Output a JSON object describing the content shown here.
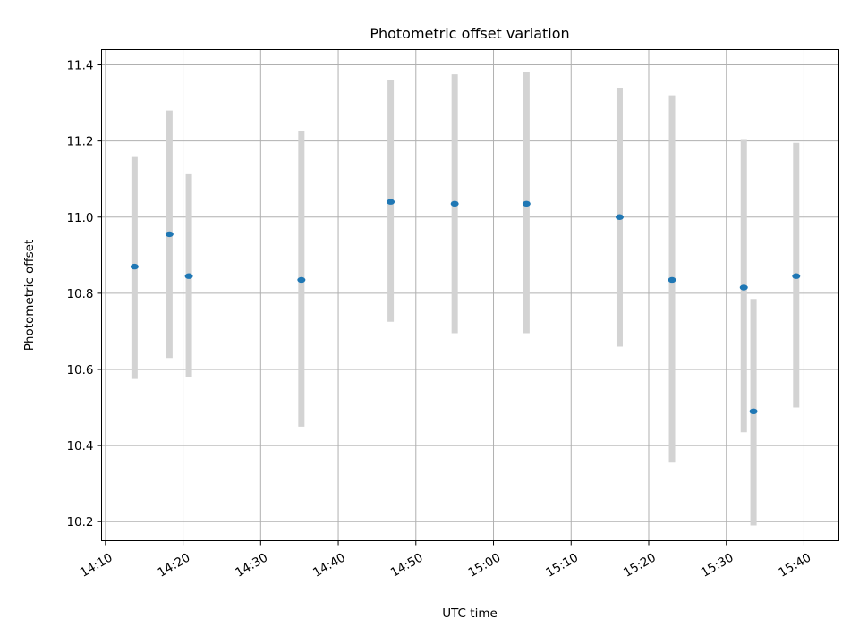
{
  "chart_data": {
    "type": "scatter",
    "title": "Photometric offset variation",
    "xlabel": "UTC time",
    "ylabel": "Photometric offset",
    "x_tick_labels": [
      "14:10",
      "14:20",
      "14:30",
      "14:40",
      "14:50",
      "15:00",
      "15:10",
      "15:20",
      "15:30",
      "15:40"
    ],
    "x_ticks_minutes": [
      0,
      10,
      20,
      30,
      40,
      50,
      60,
      70,
      80,
      90
    ],
    "xlim_minutes": [
      -0.5,
      94.5
    ],
    "y_tick_labels": [
      "10.2",
      "10.4",
      "10.6",
      "10.8",
      "11.0",
      "11.2",
      "11.4"
    ],
    "y_ticks": [
      10.2,
      10.4,
      10.6,
      10.8,
      11.0,
      11.2,
      11.4
    ],
    "ylim": [
      10.15,
      11.44
    ],
    "grid": true,
    "marker_color": "#1f77b4",
    "errorbar_color": "#d3d3d3",
    "points": [
      {
        "time": "14:13:45",
        "y": 10.87,
        "ylow": 10.575,
        "yhigh": 11.16
      },
      {
        "time": "14:18:15",
        "y": 10.955,
        "ylow": 10.63,
        "yhigh": 11.28
      },
      {
        "time": "14:20:45",
        "y": 10.845,
        "ylow": 10.58,
        "yhigh": 11.115
      },
      {
        "time": "14:35:15",
        "y": 10.835,
        "ylow": 10.45,
        "yhigh": 11.225
      },
      {
        "time": "14:46:45",
        "y": 11.04,
        "ylow": 10.725,
        "yhigh": 11.36
      },
      {
        "time": "14:55:00",
        "y": 11.035,
        "ylow": 10.695,
        "yhigh": 11.375
      },
      {
        "time": "15:04:15",
        "y": 11.035,
        "ylow": 10.695,
        "yhigh": 11.38
      },
      {
        "time": "15:16:15",
        "y": 11.0,
        "ylow": 10.66,
        "yhigh": 11.34
      },
      {
        "time": "15:23:00",
        "y": 10.835,
        "ylow": 10.355,
        "yhigh": 11.32
      },
      {
        "time": "15:32:15",
        "y": 10.815,
        "ylow": 10.435,
        "yhigh": 11.205
      },
      {
        "time": "15:33:30",
        "y": 10.49,
        "ylow": 10.19,
        "yhigh": 10.785
      },
      {
        "time": "15:39:00",
        "y": 10.845,
        "ylow": 10.5,
        "yhigh": 11.195
      }
    ]
  }
}
